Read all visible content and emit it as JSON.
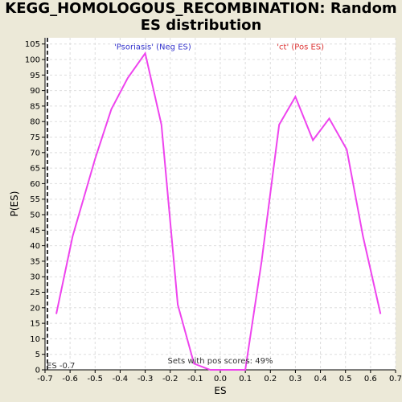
{
  "chart_data": {
    "type": "line",
    "title_line1": "KEGG_HOMOLOGOUS_RECOMBINATION: Random",
    "title_line2": "ES distribution",
    "xlabel": "ES",
    "ylabel": "P(ES)",
    "xlim": [
      -0.7,
      0.7
    ],
    "ylim": [
      0,
      107
    ],
    "xticks": [
      -0.7,
      -0.6,
      -0.5,
      -0.4,
      -0.3,
      -0.2,
      -0.1,
      0.0,
      0.1,
      0.2,
      0.3,
      0.4,
      0.5,
      0.6,
      0.7
    ],
    "xtick_labels": [
      "-0.7",
      "-0.6",
      "-0.5",
      "-0.4",
      "-0.3",
      "-0.2",
      "-0.1",
      "0.0",
      "0.1",
      "0.2",
      "0.3",
      "0.4",
      "0.5",
      "0.6",
      "0.7"
    ],
    "yticks": [
      0,
      5,
      10,
      15,
      20,
      25,
      30,
      35,
      40,
      45,
      50,
      55,
      60,
      65,
      70,
      75,
      80,
      85,
      90,
      95,
      100,
      105
    ],
    "grid": true,
    "series": [
      {
        "color": "#ee44ee",
        "x": [
          -0.655,
          -0.59,
          -0.5,
          -0.435,
          -0.37,
          -0.3,
          -0.235,
          -0.17,
          -0.105,
          -0.04,
          0.03,
          0.1,
          0.165,
          0.235,
          0.3,
          0.37,
          0.435,
          0.505,
          0.57,
          0.64
        ],
        "y": [
          18,
          43,
          68,
          84,
          94,
          102,
          79,
          21,
          2,
          0,
          0,
          0,
          35,
          79,
          88,
          74,
          81,
          71,
          43,
          18
        ]
      }
    ],
    "es_marker": {
      "x": -0.7,
      "label": "ES -0.7"
    },
    "neg_label": {
      "text": "'Psoriasis' (Neg ES)",
      "color": "#3333cc",
      "x": -0.27,
      "y": 104
    },
    "pos_label": {
      "text": "'ct' (Pos ES)",
      "color": "#dd3333",
      "x": 0.32,
      "y": 104
    },
    "footnote": {
      "text": "Sets with pos scores: 49%",
      "x": 0.0,
      "y": 1.5
    },
    "colors": {
      "plot_bg": "#ffffff",
      "page_bg": "#ece9d8",
      "grid": "#dddddd",
      "line": "#ee44ee"
    }
  }
}
